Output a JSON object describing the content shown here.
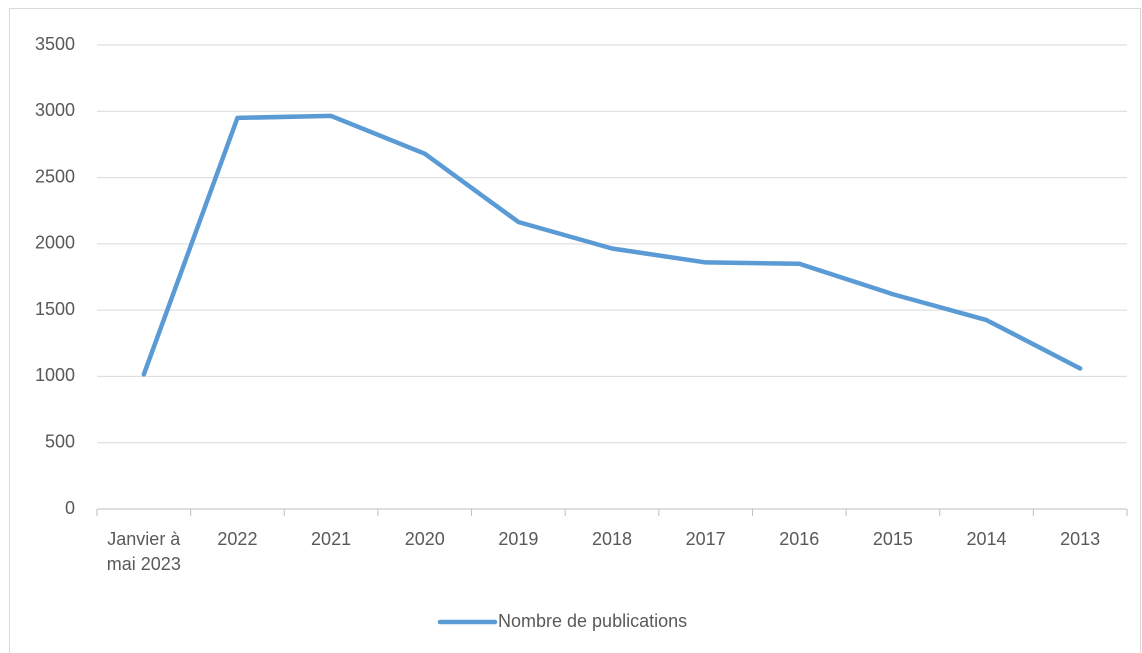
{
  "chart_data": {
    "type": "line",
    "categories": [
      "Janvier à mai 2023",
      "2022",
      "2021",
      "2020",
      "2019",
      "2018",
      "2017",
      "2016",
      "2015",
      "2014",
      "2013"
    ],
    "series": [
      {
        "name": "Nombre de publications",
        "color": "#5b9bd5",
        "values": [
          1015,
          2950,
          2965,
          2680,
          2165,
          1965,
          1860,
          1850,
          1620,
          1425,
          1060
        ]
      }
    ],
    "ylim": [
      0,
      3500
    ],
    "yticks": [
      0,
      500,
      1000,
      1500,
      2000,
      2500,
      3000,
      3500
    ],
    "grid": true,
    "legend": "bottom"
  }
}
